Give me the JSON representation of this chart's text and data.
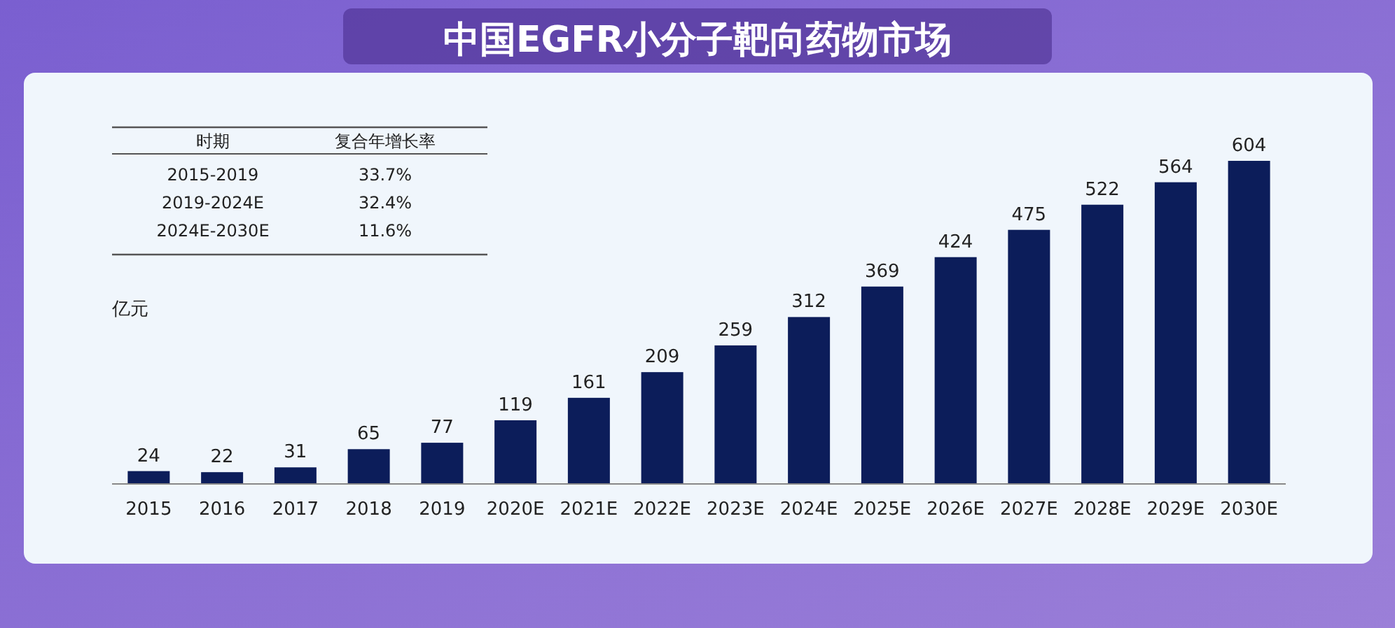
{
  "chart_data": {
    "type": "bar",
    "title": "中国EGFR小分子靶向药物市场",
    "ylabel": "亿元",
    "categories": [
      "2015",
      "2016",
      "2017",
      "2018",
      "2019",
      "2020E",
      "2021E",
      "2022E",
      "2023E",
      "2024E",
      "2025E",
      "2026E",
      "2027E",
      "2028E",
      "2029E",
      "2030E"
    ],
    "values": [
      24,
      22,
      31,
      65,
      77,
      119,
      161,
      209,
      259,
      312,
      369,
      424,
      475,
      522,
      564,
      604
    ],
    "color": "#0c1d5a",
    "data_labels": true,
    "annotations": [
      "时期",
      "复合年增长率",
      "2015-2019",
      "33.7%",
      "2019-2024E",
      "32.4%",
      "2024E-2030E",
      "11.6%"
    ]
  }
}
